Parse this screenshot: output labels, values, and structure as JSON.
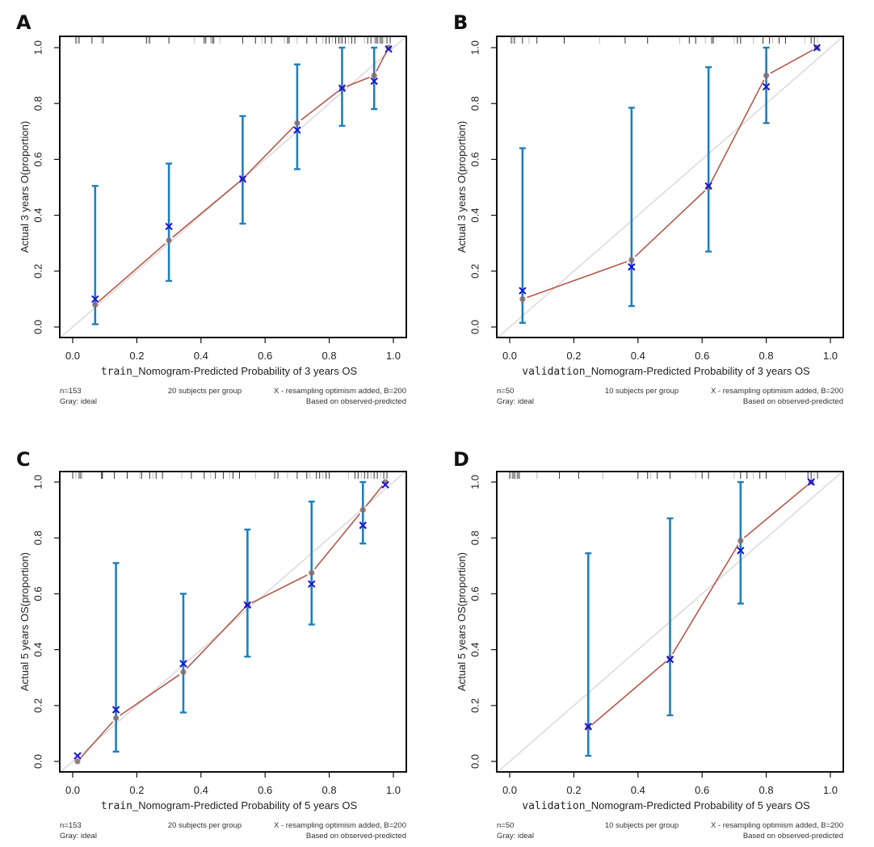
{
  "chart_data": [
    {
      "panel": "A",
      "type": "scatter",
      "subtype": "calibration",
      "xlabel_prefix": "train",
      "xlabel": "_Nomogram-Predicted Probability of 3 years OS",
      "ylabel": "Actual 3 years O(proportion)",
      "xlim": [
        0.0,
        1.0
      ],
      "ylim": [
        0.0,
        1.0
      ],
      "xticks": [
        "0.0",
        "0.2",
        "0.4",
        "0.6",
        "0.8",
        "1.0"
      ],
      "yticks": [
        "0.0",
        "0.2",
        "0.4",
        "0.6",
        "0.8",
        "1.0"
      ],
      "ideal_line": {
        "name": "Gray: ideal",
        "x": [
          0,
          1
        ],
        "y": [
          0,
          1
        ]
      },
      "observed": {
        "x": [
          0.07,
          0.3,
          0.53,
          0.7,
          0.84,
          0.94,
          0.985
        ],
        "y": [
          0.08,
          0.31,
          0.53,
          0.73,
          0.855,
          0.9,
          1.0
        ]
      },
      "corrected": {
        "x": [
          0.07,
          0.3,
          0.53,
          0.7,
          0.84,
          0.94,
          0.985
        ],
        "y": [
          0.1,
          0.36,
          0.53,
          0.705,
          0.855,
          0.88,
          0.995
        ]
      },
      "error_bars": [
        {
          "x": 0.07,
          "low": 0.01,
          "high": 0.505
        },
        {
          "x": 0.3,
          "low": 0.165,
          "high": 0.585
        },
        {
          "x": 0.53,
          "low": 0.37,
          "high": 0.755
        },
        {
          "x": 0.7,
          "low": 0.565,
          "high": 0.94
        },
        {
          "x": 0.84,
          "low": 0.72,
          "high": 1.0
        },
        {
          "x": 0.94,
          "low": 0.78,
          "high": 1.0
        }
      ],
      "rug": [
        0.01,
        0.015,
        0.02,
        0.06,
        0.09,
        0.095,
        0.23,
        0.235,
        0.24,
        0.3,
        0.38,
        0.41,
        0.415,
        0.43,
        0.435,
        0.44,
        0.46,
        0.53,
        0.57,
        0.59,
        0.6,
        0.62,
        0.66,
        0.67,
        0.675,
        0.7,
        0.73,
        0.76,
        0.78,
        0.79,
        0.8,
        0.81,
        0.82,
        0.83,
        0.835,
        0.84,
        0.85,
        0.86,
        0.87,
        0.88,
        0.91,
        0.92,
        0.93,
        0.94,
        0.945,
        0.95,
        0.955,
        0.96,
        0.965,
        0.97,
        0.98,
        0.99
      ],
      "footnotes": {
        "n": "n=153",
        "group": "20 subjects per group",
        "resample": "X - resampling optimism added, B=200",
        "ideal": "Gray: ideal",
        "basis": "Based on observed-predicted"
      }
    },
    {
      "panel": "B",
      "type": "scatter",
      "subtype": "calibration",
      "xlabel_prefix": "validation",
      "xlabel": "_Nomogram-Predicted Probability of 3 years OS",
      "ylabel": "Actual 3 years O(proportion)",
      "xlim": [
        0.0,
        1.0
      ],
      "ylim": [
        0.0,
        1.0
      ],
      "xticks": [
        "0.0",
        "0.2",
        "0.4",
        "0.6",
        "0.8",
        "1.0"
      ],
      "yticks": [
        "0.0",
        "0.2",
        "0.4",
        "0.6",
        "0.8",
        "1.0"
      ],
      "ideal_line": {
        "name": "Gray: ideal",
        "x": [
          0,
          1
        ],
        "y": [
          0,
          1
        ]
      },
      "observed": {
        "x": [
          0.04,
          0.38,
          0.62,
          0.8,
          0.958
        ],
        "y": [
          0.1,
          0.24,
          0.5,
          0.9,
          1.0
        ]
      },
      "corrected": {
        "x": [
          0.04,
          0.38,
          0.62,
          0.8,
          0.958
        ],
        "y": [
          0.13,
          0.215,
          0.505,
          0.86,
          1.0
        ]
      },
      "error_bars": [
        {
          "x": 0.04,
          "low": 0.015,
          "high": 0.64
        },
        {
          "x": 0.38,
          "low": 0.075,
          "high": 0.785
        },
        {
          "x": 0.62,
          "low": 0.27,
          "high": 0.93
        },
        {
          "x": 0.8,
          "low": 0.73,
          "high": 1.0
        }
      ],
      "rug": [
        0.005,
        0.01,
        0.015,
        0.04,
        0.06,
        0.085,
        0.17,
        0.28,
        0.36,
        0.43,
        0.53,
        0.56,
        0.58,
        0.61,
        0.63,
        0.635,
        0.7,
        0.71,
        0.72,
        0.76,
        0.79,
        0.81,
        0.82,
        0.84,
        0.86,
        0.92,
        0.94,
        0.95,
        0.96
      ],
      "footnotes": {
        "n": "n=50",
        "group": "10 subjects per group",
        "resample": "X - resampling optimism added, B=200",
        "ideal": "Gray: ideal",
        "basis": "Based on observed-predicted"
      }
    },
    {
      "panel": "C",
      "type": "scatter",
      "subtype": "calibration",
      "xlabel_prefix": "train",
      "xlabel": "_Nomogram-Predicted Probability of 5 years OS",
      "ylabel": "Actual 5 years OS(proportion)",
      "xlim": [
        0.0,
        1.0
      ],
      "ylim": [
        0.0,
        1.0
      ],
      "xticks": [
        "0.0",
        "0.2",
        "0.4",
        "0.6",
        "0.8",
        "1.0"
      ],
      "yticks": [
        "0.0",
        "0.2",
        "0.4",
        "0.6",
        "0.8",
        "1.0"
      ],
      "ideal_line": {
        "name": "Gray: ideal",
        "x": [
          0,
          1
        ],
        "y": [
          0,
          1
        ]
      },
      "observed": {
        "x": [
          0.015,
          0.135,
          0.345,
          0.545,
          0.745,
          0.905,
          0.975
        ],
        "y": [
          0.0,
          0.155,
          0.32,
          0.56,
          0.675,
          0.9,
          1.0
        ]
      },
      "corrected": {
        "x": [
          0.015,
          0.135,
          0.345,
          0.545,
          0.745,
          0.905,
          0.975
        ],
        "y": [
          0.02,
          0.185,
          0.35,
          0.56,
          0.635,
          0.845,
          0.99
        ]
      },
      "error_bars": [
        {
          "x": 0.135,
          "low": 0.035,
          "high": 0.71
        },
        {
          "x": 0.345,
          "low": 0.175,
          "high": 0.6
        },
        {
          "x": 0.545,
          "low": 0.375,
          "high": 0.83
        },
        {
          "x": 0.745,
          "low": 0.49,
          "high": 0.93
        },
        {
          "x": 0.905,
          "low": 0.78,
          "high": 1.0
        }
      ],
      "rug": [
        0.0,
        0.01,
        0.02,
        0.025,
        0.03,
        0.09,
        0.092,
        0.095,
        0.13,
        0.17,
        0.21,
        0.215,
        0.24,
        0.25,
        0.26,
        0.28,
        0.34,
        0.37,
        0.41,
        0.43,
        0.445,
        0.47,
        0.49,
        0.5,
        0.52,
        0.57,
        0.63,
        0.64,
        0.67,
        0.7,
        0.73,
        0.74,
        0.76,
        0.77,
        0.78,
        0.79,
        0.8,
        0.86,
        0.88,
        0.89,
        0.9,
        0.91,
        0.92,
        0.93,
        0.94,
        0.95,
        0.96,
        0.97,
        0.98
      ],
      "footnotes": {
        "n": "n=153",
        "group": "20 subjects per group",
        "resample": "X - resampling optimism added, B=200",
        "ideal": "Gray: ideal",
        "basis": "Based on observed-predicted"
      }
    },
    {
      "panel": "D",
      "type": "scatter",
      "subtype": "calibration",
      "xlabel_prefix": "validation",
      "xlabel": "_Nomogram-Predicted Probability of 5 years OS",
      "ylabel": "Actual 5 years OS(proportion)",
      "xlim": [
        0.0,
        1.0
      ],
      "ylim": [
        0.0,
        1.0
      ],
      "xticks": [
        "0.0",
        "0.2",
        "0.4",
        "0.6",
        "0.8",
        "1.0"
      ],
      "yticks": [
        "0.0",
        "0.2",
        "0.4",
        "0.6",
        "0.8",
        "1.0"
      ],
      "ideal_line": {
        "name": "Gray: ideal",
        "x": [
          0,
          1
        ],
        "y": [
          0,
          1
        ]
      },
      "observed": {
        "x": [
          0.245,
          0.5,
          0.72,
          0.94
        ],
        "y": [
          0.12,
          0.37,
          0.79,
          1.0
        ]
      },
      "corrected": {
        "x": [
          0.245,
          0.5,
          0.72,
          0.94
        ],
        "y": [
          0.125,
          0.365,
          0.755,
          1.0
        ]
      },
      "error_bars": [
        {
          "x": 0.245,
          "low": 0.02,
          "high": 0.745
        },
        {
          "x": 0.5,
          "low": 0.165,
          "high": 0.87
        },
        {
          "x": 0.72,
          "low": 0.565,
          "high": 1.0
        }
      ],
      "rug": [
        0.0,
        0.005,
        0.01,
        0.015,
        0.02,
        0.025,
        0.03,
        0.085,
        0.155,
        0.215,
        0.29,
        0.4,
        0.43,
        0.44,
        0.46,
        0.5,
        0.58,
        0.6,
        0.62,
        0.7,
        0.72,
        0.74,
        0.76,
        0.78,
        0.8,
        0.86,
        0.93,
        0.94,
        0.95,
        0.96
      ],
      "footnotes": {
        "n": "n=50",
        "group": "10 subjects per group",
        "resample": "X - resampling optimism added, B=200",
        "ideal": "Gray: ideal",
        "basis": "Based on observed-predicted"
      }
    }
  ],
  "colors": {
    "observed_line": "#b5584a",
    "observed_dot": "#8a6a6a",
    "corrected_marker": "#1414d8",
    "error_bar": "#1f7fbf",
    "ideal_line": "#dcdcdc",
    "rug_dark": "#333333",
    "rug_light": "#bbbbbb",
    "frame": "#111111"
  }
}
